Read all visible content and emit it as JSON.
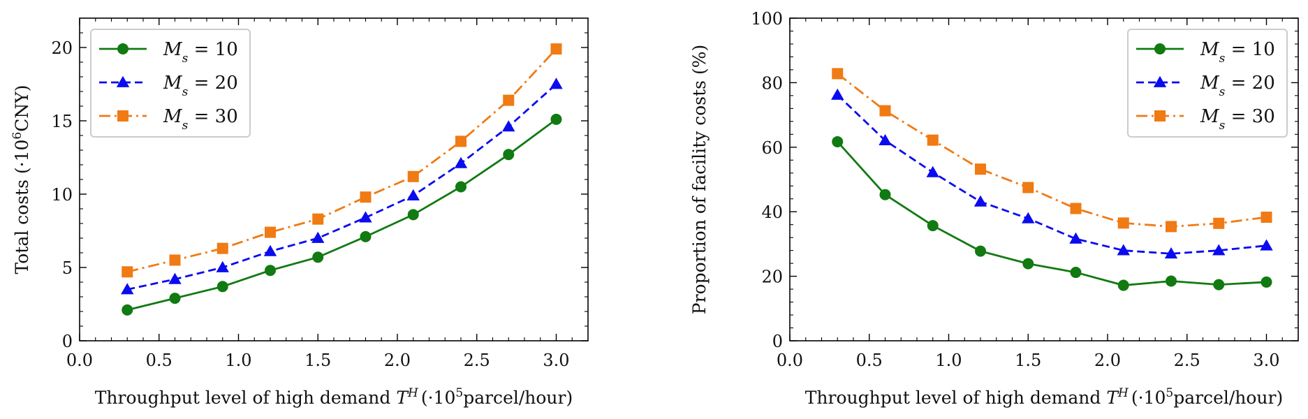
{
  "chart_data": [
    {
      "type": "line",
      "xlabel_main": "Throughput level of high demand ",
      "xlabel_var": "T",
      "xlabel_sup": "H",
      "xlabel_unit_pre": "(·10",
      "xlabel_unit_sup": "5",
      "xlabel_unit_post": "parcel/hour)",
      "ylabel_pre": "Total costs (·10",
      "ylabel_sup": "6",
      "ylabel_post": "CNY)",
      "xlim": [
        0.0,
        3.2
      ],
      "ylim": [
        0,
        22
      ],
      "xticks": [
        "0.0",
        "0.5",
        "1.0",
        "1.5",
        "2.0",
        "2.5",
        "3.0"
      ],
      "yticks": [
        "0",
        "5",
        "10",
        "15",
        "20"
      ],
      "legend": "top-left",
      "x": [
        0.3,
        0.6,
        0.9,
        1.2,
        1.5,
        1.8,
        2.1,
        2.4,
        2.7,
        3.0
      ],
      "series": [
        {
          "name": "M_s = 10",
          "label_var": "M",
          "label_sub": "s",
          "label_rest": " = 10",
          "color": "#117a11",
          "dash": "solid",
          "marker": "circle",
          "values": [
            2.1,
            2.9,
            3.7,
            4.8,
            5.7,
            7.1,
            8.6,
            10.5,
            12.7,
            15.1
          ]
        },
        {
          "name": "M_s = 20",
          "label_var": "M",
          "label_sub": "s",
          "label_rest": " = 20",
          "color": "#0b0bf0",
          "dash": "dashed",
          "marker": "triangle",
          "values": [
            3.5,
            4.2,
            5.0,
            6.1,
            7.0,
            8.4,
            9.9,
            12.1,
            14.6,
            17.5
          ]
        },
        {
          "name": "M_s = 30",
          "label_var": "M",
          "label_sub": "s",
          "label_rest": " = 30",
          "color": "#f07a14",
          "dash": "dashdot",
          "marker": "square",
          "values": [
            4.7,
            5.5,
            6.3,
            7.4,
            8.3,
            9.8,
            11.2,
            13.6,
            16.4,
            19.9
          ]
        }
      ]
    },
    {
      "type": "line",
      "xlabel_main": "Throughput level of high demand ",
      "xlabel_var": "T",
      "xlabel_sup": "H",
      "xlabel_unit_pre": "(·10",
      "xlabel_unit_sup": "5",
      "xlabel_unit_post": "parcel/hour)",
      "ylabel": "Proportion of facility costs (%)",
      "xlim": [
        0.0,
        3.2
      ],
      "ylim": [
        0,
        100
      ],
      "xticks": [
        "0.0",
        "0.5",
        "1.0",
        "1.5",
        "2.0",
        "2.5",
        "3.0"
      ],
      "yticks": [
        "0",
        "20",
        "40",
        "60",
        "80",
        "100"
      ],
      "legend": "top-right",
      "x": [
        0.3,
        0.6,
        0.9,
        1.2,
        1.5,
        1.8,
        2.1,
        2.4,
        2.7,
        3.0
      ],
      "series": [
        {
          "name": "M_s = 10",
          "label_var": "M",
          "label_sub": "s",
          "label_rest": " = 10",
          "color": "#117a11",
          "dash": "solid",
          "marker": "circle",
          "values": [
            61.7,
            45.3,
            35.7,
            27.8,
            23.9,
            21.2,
            17.2,
            18.5,
            17.4,
            18.2
          ]
        },
        {
          "name": "M_s = 20",
          "label_var": "M",
          "label_sub": "s",
          "label_rest": " = 20",
          "color": "#0b0bf0",
          "dash": "dashed",
          "marker": "triangle",
          "values": [
            76.2,
            62.1,
            52.2,
            43.1,
            37.9,
            31.6,
            28.0,
            27.0,
            28.0,
            29.5
          ]
        },
        {
          "name": "M_s = 30",
          "label_var": "M",
          "label_sub": "s",
          "label_rest": " = 30",
          "color": "#f07a14",
          "dash": "dashdot",
          "marker": "square",
          "values": [
            82.8,
            71.3,
            62.2,
            53.2,
            47.5,
            41.0,
            36.5,
            35.4,
            36.4,
            38.3
          ]
        }
      ]
    }
  ]
}
